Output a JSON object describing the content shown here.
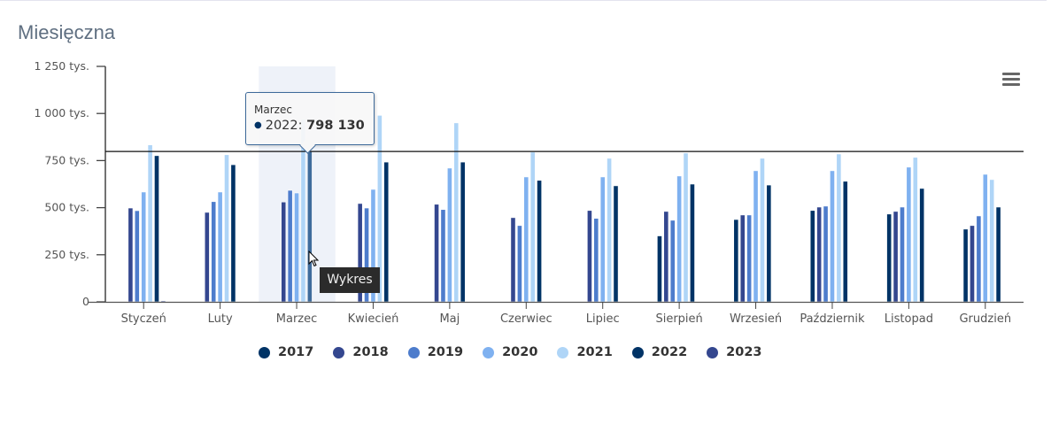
{
  "header": {
    "title": "Miesięczna"
  },
  "menu": {
    "icon": "hamburger-menu-icon"
  },
  "tooltip": {
    "category": "Marzec",
    "series": "2022",
    "sep": ":",
    "value": "798 130"
  },
  "hover_tip": {
    "label": "Wykres"
  },
  "chart_data": {
    "type": "bar",
    "title": "Miesięczna",
    "xlabel": "",
    "ylabel": "",
    "ylim": [
      0,
      1250000
    ],
    "y_ticks": [
      "0",
      "250 tys.",
      "500 tys.",
      "750 tys.",
      "1 000 tys.",
      "1 250 tys."
    ],
    "y_tick_values": [
      0,
      250000,
      500000,
      750000,
      1000000,
      1250000
    ],
    "grid": false,
    "legend_position": "bottom",
    "highlighted_category": "Marzec",
    "plot_line": {
      "value": 798130
    },
    "categories": [
      "Styczeń",
      "Luty",
      "Marzec",
      "Kwiecień",
      "Maj",
      "Czerwiec",
      "Lipiec",
      "Sierpień",
      "Wrzesień",
      "Październik",
      "Listopad",
      "Grudzień"
    ],
    "series": [
      {
        "name": "2017",
        "color": "#003366",
        "values": [
          null,
          null,
          null,
          null,
          null,
          null,
          null,
          350000,
          437000,
          485000,
          466000,
          386000
        ]
      },
      {
        "name": "2018",
        "color": "#34478f",
        "values": [
          498000,
          475000,
          530000,
          522000,
          518000,
          447000,
          485000,
          480000,
          461000,
          503000,
          480000,
          405000
        ]
      },
      {
        "name": "2019",
        "color": "#4d7ccc",
        "values": [
          484000,
          532000,
          592000,
          498000,
          490000,
          405000,
          443000,
          433000,
          461000,
          508000,
          503000,
          456000
        ]
      },
      {
        "name": "2020",
        "color": "#7fb1f0",
        "values": [
          583000,
          583000,
          578000,
          597000,
          710000,
          663000,
          663000,
          668000,
          696000,
          696000,
          715000,
          677000
        ]
      },
      {
        "name": "2021",
        "color": "#afd5f7",
        "values": [
          833000,
          781000,
          970000,
          990000,
          950000,
          795000,
          762000,
          790000,
          762000,
          785000,
          767000,
          649000
        ]
      },
      {
        "name": "2022",
        "color": "#003366",
        "values": [
          776000,
          728000,
          798130,
          742000,
          742000,
          645000,
          616000,
          625000,
          620000,
          640000,
          602000,
          503000
        ]
      },
      {
        "name": "2023",
        "color": "#34478f",
        "values": [
          5000,
          null,
          null,
          null,
          null,
          null,
          null,
          null,
          null,
          null,
          null,
          null
        ]
      }
    ]
  }
}
